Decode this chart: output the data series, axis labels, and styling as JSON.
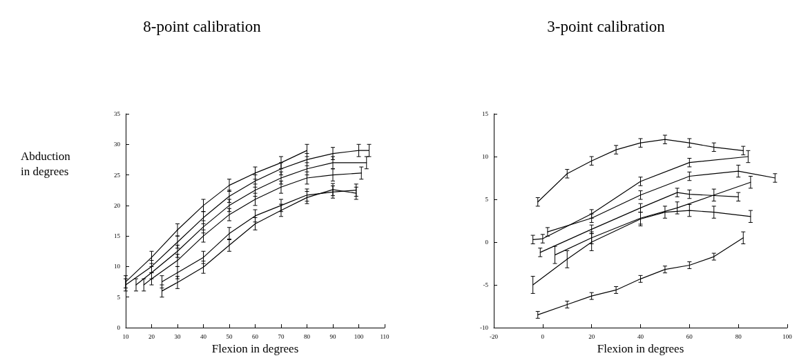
{
  "chart_data": [
    {
      "type": "line",
      "title": "8-point calibration",
      "xlabel": "Flexion in degrees",
      "ylabel": "Abduction in degrees",
      "xlim": [
        10,
        110
      ],
      "xticks": [
        10,
        20,
        30,
        40,
        50,
        60,
        70,
        80,
        90,
        100,
        110
      ],
      "ylim": [
        0,
        35
      ],
      "yticks": [
        0,
        5,
        10,
        15,
        20,
        25,
        30,
        35
      ],
      "grid": false,
      "marker": "none",
      "line_style": "solid",
      "series": [
        {
          "color": "#000000",
          "x": [
            10,
            20,
            30,
            40,
            50,
            60,
            70,
            80
          ],
          "values": [
            7.5,
            11.5,
            16,
            20,
            23.3,
            25.3,
            27,
            29
          ],
          "errors": [
            1,
            1,
            1,
            1,
            1,
            1,
            1,
            1
          ]
        },
        {
          "color": "#000000",
          "x": [
            10,
            20,
            30,
            40,
            50,
            60,
            70,
            80,
            90,
            100,
            104
          ],
          "values": [
            7,
            10,
            14,
            18,
            21.5,
            24,
            26,
            27.5,
            28.5,
            29,
            29
          ],
          "errors": [
            1,
            1,
            1,
            1,
            1,
            1,
            1,
            1,
            1,
            1,
            1
          ]
        },
        {
          "color": "#000000",
          "x": [
            14,
            20,
            30,
            40,
            50,
            60,
            70,
            80,
            90,
            103
          ],
          "values": [
            7,
            9,
            12.5,
            16.5,
            20,
            22.5,
            24.5,
            26,
            27,
            27
          ],
          "errors": [
            1,
            1,
            1,
            1,
            1,
            1,
            1,
            1,
            1,
            1
          ]
        },
        {
          "color": "#000000",
          "x": [
            17,
            20,
            30,
            40,
            50,
            60,
            70,
            80,
            90,
            101
          ],
          "values": [
            7,
            8,
            11,
            15,
            18.5,
            21,
            23,
            24.5,
            25,
            25.3
          ],
          "errors": [
            1,
            1,
            1,
            1,
            1,
            1,
            1,
            1,
            1,
            1
          ]
        },
        {
          "color": "#000000",
          "x": [
            24,
            30,
            40,
            50,
            60,
            70,
            80,
            90,
            99
          ],
          "values": [
            7.5,
            9,
            11.5,
            15.4,
            18.3,
            20,
            21.7,
            22.2,
            22.5
          ],
          "errors": [
            1,
            1,
            1,
            1,
            1,
            1,
            1,
            1,
            1
          ]
        },
        {
          "color": "#000000",
          "x": [
            24,
            30,
            40,
            50,
            60,
            70,
            80,
            90,
            99
          ],
          "values": [
            6,
            7.4,
            9.9,
            13.5,
            17,
            19.2,
            21.3,
            22.6,
            22
          ],
          "errors": [
            1,
            1,
            1,
            1,
            1,
            1,
            1,
            1,
            1
          ]
        }
      ]
    },
    {
      "type": "line",
      "title": "3-point calibration",
      "xlabel": "Flexion in degrees",
      "xlim": [
        -20,
        100
      ],
      "xticks": [
        -20,
        0,
        20,
        40,
        60,
        80,
        100
      ],
      "ylim": [
        -10,
        15
      ],
      "yticks": [
        -10,
        -5,
        0,
        5,
        10,
        15
      ],
      "grid": false,
      "marker": "none",
      "line_style": "solid",
      "series": [
        {
          "color": "#000000",
          "x": [
            -2,
            10,
            20,
            30,
            40,
            50,
            60,
            70,
            82
          ],
          "values": [
            4.7,
            8,
            9.5,
            10.8,
            11.6,
            12,
            11.6,
            11.1,
            10.7
          ],
          "errors": [
            0.5,
            0.5,
            0.5,
            0.5,
            0.5,
            0.5,
            0.5,
            0.5,
            0.5
          ]
        },
        {
          "color": "#000000",
          "x": [
            -4,
            0,
            20,
            40,
            60,
            84
          ],
          "values": [
            0.3,
            0.4,
            3.3,
            7.1,
            9.3,
            10
          ],
          "errors": [
            0.5,
            0.5,
            0.5,
            0.5,
            0.5,
            0.7
          ]
        },
        {
          "color": "#000000",
          "x": [
            2,
            20,
            40,
            60,
            80,
            95
          ],
          "values": [
            1.2,
            2.8,
            5.5,
            7.7,
            8.3,
            7.5
          ],
          "errors": [
            0.5,
            0.5,
            0.5,
            0.5,
            0.7,
            0.5
          ]
        },
        {
          "color": "#000000",
          "x": [
            -1,
            20,
            40,
            55,
            60,
            80
          ],
          "values": [
            -1.2,
            1.5,
            4,
            5.8,
            5.6,
            5.3
          ],
          "errors": [
            0.5,
            0.5,
            0.5,
            0.5,
            0.5,
            0.5
          ]
        },
        {
          "color": "#000000",
          "x": [
            5,
            20,
            40,
            55,
            70,
            85
          ],
          "values": [
            -1.5,
            0.5,
            2.8,
            4,
            5.5,
            7
          ],
          "errors": [
            1,
            0.7,
            0.7,
            0.7,
            0.7,
            0.7
          ]
        },
        {
          "color": "#000000",
          "x": [
            -4,
            10,
            20,
            40,
            50,
            60,
            70,
            85
          ],
          "values": [
            -5,
            -2,
            0,
            2.7,
            3.5,
            3.7,
            3.5,
            3
          ],
          "errors": [
            1,
            1,
            1,
            0.8,
            0.7,
            0.7,
            0.7,
            0.7
          ]
        },
        {
          "color": "#000000",
          "x": [
            -2,
            10,
            20,
            30,
            40,
            50,
            60,
            70,
            82
          ],
          "values": [
            -8.5,
            -7.3,
            -6.3,
            -5.6,
            -4.3,
            -3.2,
            -2.7,
            -1.7,
            0.5
          ],
          "errors": [
            0.4,
            0.4,
            0.4,
            0.4,
            0.4,
            0.4,
            0.4,
            0.4,
            0.7
          ]
        }
      ]
    }
  ]
}
